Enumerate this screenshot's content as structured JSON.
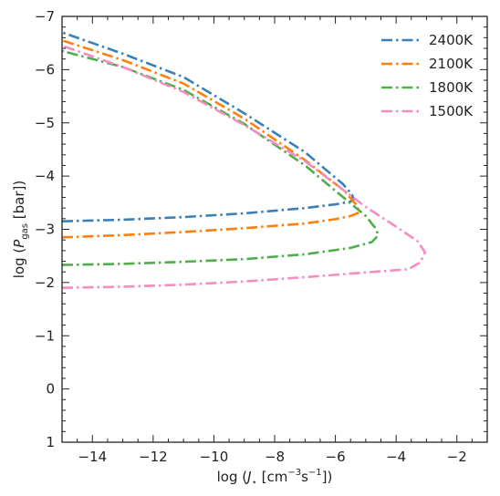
{
  "chart_data": {
    "type": "line",
    "xlabel_parts": {
      "prefix": "log (",
      "symbol": "J",
      "sub": "⋆",
      "unit_open": "  [cm",
      "exp1": "−3",
      "mid": "s",
      "exp2": "−1",
      "close": "])"
    },
    "ylabel_parts": {
      "prefix": "log (",
      "symbol": "P",
      "sub": "gas",
      "unit": " [bar])"
    },
    "xlim": [
      -15,
      -1
    ],
    "ylim": [
      1,
      -7
    ],
    "y_inverted": true,
    "x_ticks": [
      -14,
      -12,
      -10,
      -8,
      -6,
      -4,
      -2
    ],
    "x_tick_labels": [
      "−14",
      "−12",
      "−10",
      "−8",
      "−6",
      "−4",
      "−2"
    ],
    "y_ticks": [
      -7,
      -6,
      -5,
      -4,
      -3,
      -2,
      -1,
      0,
      1
    ],
    "y_tick_labels": [
      "−7",
      "−6",
      "−5",
      "−4",
      "−3",
      "−2",
      "−1",
      "0",
      "1"
    ],
    "grid": false,
    "legend_position": "top-right",
    "series": [
      {
        "name": "2400K",
        "color": "#3a7fb8",
        "points": [
          [
            -15.0,
            -3.15
          ],
          [
            -13.0,
            -3.18
          ],
          [
            -11.0,
            -3.23
          ],
          [
            -9.0,
            -3.3
          ],
          [
            -7.0,
            -3.4
          ],
          [
            -6.0,
            -3.47
          ],
          [
            -5.5,
            -3.52
          ],
          [
            -5.4,
            -3.56
          ],
          [
            -5.45,
            -3.65
          ],
          [
            -5.75,
            -3.85
          ],
          [
            -7.0,
            -4.45
          ],
          [
            -9.0,
            -5.18
          ],
          [
            -11.0,
            -5.86
          ],
          [
            -13.0,
            -6.3
          ],
          [
            -15.0,
            -6.7
          ]
        ]
      },
      {
        "name": "2100K",
        "color": "#ff7f0e",
        "points": [
          [
            -15.0,
            -2.85
          ],
          [
            -13.0,
            -2.89
          ],
          [
            -11.0,
            -2.95
          ],
          [
            -9.0,
            -3.02
          ],
          [
            -7.0,
            -3.11
          ],
          [
            -6.0,
            -3.19
          ],
          [
            -5.5,
            -3.25
          ],
          [
            -5.2,
            -3.32
          ],
          [
            -5.3,
            -3.45
          ],
          [
            -5.7,
            -3.72
          ],
          [
            -7.0,
            -4.3
          ],
          [
            -9.0,
            -5.08
          ],
          [
            -11.0,
            -5.74
          ],
          [
            -13.0,
            -6.18
          ],
          [
            -15.0,
            -6.55
          ]
        ]
      },
      {
        "name": "1800K",
        "color": "#4daf4a",
        "points": [
          [
            -15.0,
            -2.33
          ],
          [
            -13.0,
            -2.35
          ],
          [
            -11.0,
            -2.39
          ],
          [
            -9.0,
            -2.44
          ],
          [
            -7.0,
            -2.53
          ],
          [
            -5.5,
            -2.65
          ],
          [
            -4.8,
            -2.76
          ],
          [
            -4.6,
            -2.88
          ],
          [
            -4.65,
            -3.0
          ],
          [
            -5.0,
            -3.25
          ],
          [
            -5.7,
            -3.58
          ],
          [
            -7.0,
            -4.2
          ],
          [
            -9.0,
            -4.98
          ],
          [
            -11.0,
            -5.62
          ],
          [
            -13.0,
            -6.05
          ],
          [
            -15.0,
            -6.35
          ]
        ]
      },
      {
        "name": "1500K",
        "color": "#f58cc3",
        "points": [
          [
            -15.0,
            -1.9
          ],
          [
            -13.0,
            -1.92
          ],
          [
            -11.0,
            -1.96
          ],
          [
            -9.0,
            -2.02
          ],
          [
            -7.0,
            -2.1
          ],
          [
            -5.0,
            -2.19
          ],
          [
            -3.6,
            -2.25
          ],
          [
            -3.2,
            -2.38
          ],
          [
            -3.05,
            -2.57
          ],
          [
            -3.3,
            -2.78
          ],
          [
            -4.0,
            -3.05
          ],
          [
            -5.0,
            -3.42
          ],
          [
            -6.0,
            -3.85
          ],
          [
            -7.0,
            -4.28
          ],
          [
            -9.0,
            -4.96
          ],
          [
            -11.0,
            -5.58
          ],
          [
            -13.0,
            -6.05
          ],
          [
            -15.0,
            -6.45
          ]
        ]
      }
    ]
  }
}
